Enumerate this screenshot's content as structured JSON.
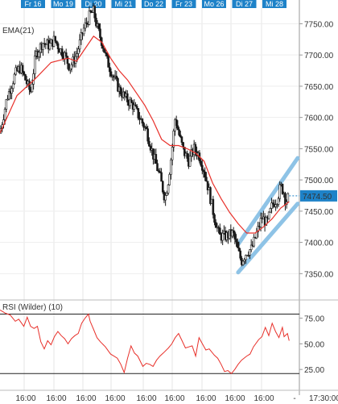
{
  "chart_data": [
    {
      "type": "candlestick",
      "indicator_label": "EMA(21)",
      "top_day_labels": [
        "Fr 16",
        "Mo 19",
        "Di 20",
        "Mi 21",
        "Do 22",
        "Fr 23",
        "Mo 26",
        "Di 27",
        "Mi 28"
      ],
      "x_tick_labels": [
        "16:00",
        "16:00",
        "16:00",
        "16:00",
        "16:00",
        "16:00",
        "16:00",
        "16:00",
        "16:00",
        "-",
        "17:30:00"
      ],
      "y_ticks": [
        7750,
        7700,
        7650,
        7600,
        7550,
        7500,
        7450,
        7400,
        7350
      ],
      "y_tick_labels": [
        "7750.00",
        "7700.00",
        "7650.00",
        "7600.00",
        "7550.00",
        "7500.00",
        "7450.00",
        "7400.00",
        "7350.00"
      ],
      "ylim": [
        7313,
        7788
      ],
      "last_price": 7474.5,
      "last_price_label": "7474.50",
      "close_path": [
        [
          0,
          7575
        ],
        [
          4,
          7630
        ],
        [
          9,
          7670
        ],
        [
          12,
          7680
        ],
        [
          15,
          7660
        ],
        [
          18,
          7640
        ],
        [
          21,
          7700
        ],
        [
          25,
          7720
        ],
        [
          29,
          7715
        ],
        [
          32,
          7725
        ],
        [
          35,
          7710
        ],
        [
          38,
          7700
        ],
        [
          41,
          7680
        ],
        [
          45,
          7700
        ],
        [
          49,
          7740
        ],
        [
          53,
          7765
        ],
        [
          55,
          7770
        ],
        [
          57,
          7745
        ],
        [
          60,
          7720
        ],
        [
          63,
          7690
        ],
        [
          66,
          7670
        ],
        [
          70,
          7645
        ],
        [
          74,
          7630
        ],
        [
          78,
          7620
        ],
        [
          82,
          7600
        ],
        [
          86,
          7580
        ],
        [
          90,
          7540
        ],
        [
          94,
          7505
        ],
        [
          97,
          7470
        ],
        [
          99,
          7500
        ],
        [
          101,
          7545
        ],
        [
          103,
          7600
        ],
        [
          105,
          7575
        ],
        [
          108,
          7545
        ],
        [
          111,
          7530
        ],
        [
          114,
          7550
        ],
        [
          117,
          7540
        ],
        [
          120,
          7515
        ],
        [
          123,
          7480
        ],
        [
          126,
          7440
        ],
        [
          129,
          7410
        ],
        [
          133,
          7410
        ],
        [
          137,
          7415
        ],
        [
          140,
          7385
        ],
        [
          142,
          7370
        ],
        [
          145,
          7385
        ],
        [
          148,
          7390
        ],
        [
          151,
          7415
        ],
        [
          154,
          7440
        ],
        [
          157,
          7430
        ],
        [
          160,
          7460
        ],
        [
          163,
          7470
        ],
        [
          165,
          7490
        ],
        [
          167,
          7480
        ],
        [
          168,
          7465
        ],
        [
          170,
          7474.5
        ]
      ],
      "ema_path": [
        [
          0,
          7575
        ],
        [
          10,
          7635
        ],
        [
          20,
          7660
        ],
        [
          30,
          7688
        ],
        [
          40,
          7695
        ],
        [
          45,
          7690
        ],
        [
          50,
          7710
        ],
        [
          55,
          7730
        ],
        [
          60,
          7720
        ],
        [
          65,
          7695
        ],
        [
          70,
          7675
        ],
        [
          75,
          7660
        ],
        [
          80,
          7640
        ],
        [
          85,
          7620
        ],
        [
          90,
          7595
        ],
        [
          95,
          7565
        ],
        [
          100,
          7555
        ],
        [
          105,
          7555
        ],
        [
          110,
          7550
        ],
        [
          115,
          7543
        ],
        [
          120,
          7530
        ],
        [
          125,
          7495
        ],
        [
          130,
          7470
        ],
        [
          135,
          7448
        ],
        [
          140,
          7430
        ],
        [
          145,
          7415
        ],
        [
          150,
          7415
        ],
        [
          155,
          7425
        ],
        [
          160,
          7438
        ],
        [
          165,
          7455
        ],
        [
          170,
          7465
        ]
      ],
      "channel_lines": [
        [
          [
            140,
            7397
          ],
          [
            175,
            7535
          ]
        ],
        [
          [
            140,
            7352
          ],
          [
            175,
            7462
          ]
        ]
      ],
      "colors": {
        "candles": "#1a1a1a",
        "ema": "#e8302a",
        "channel": "#8ec3e6",
        "label_bg": "#1e82c8",
        "last_price_box": "#1e82c8"
      }
    },
    {
      "type": "line",
      "indicator_label": "RSI (Wilder) (10)",
      "y_ticks": [
        75,
        50,
        25
      ],
      "y_tick_labels": [
        "75.00",
        "50.00",
        "25.00"
      ],
      "ylim": [
        11,
        88
      ],
      "reference_lines": [
        79,
        21
      ],
      "values": [
        [
          0,
          83
        ],
        [
          3,
          80
        ],
        [
          6,
          78
        ],
        [
          9,
          72
        ],
        [
          11,
          74
        ],
        [
          14,
          67
        ],
        [
          16,
          76
        ],
        [
          18,
          67
        ],
        [
          20,
          65
        ],
        [
          22,
          67
        ],
        [
          24,
          52
        ],
        [
          26,
          45
        ],
        [
          28,
          53
        ],
        [
          30,
          49
        ],
        [
          32,
          57
        ],
        [
          34,
          62
        ],
        [
          36,
          58
        ],
        [
          38,
          55
        ],
        [
          40,
          50
        ],
        [
          42,
          55
        ],
        [
          44,
          58
        ],
        [
          46,
          60
        ],
        [
          48,
          70
        ],
        [
          50,
          75
        ],
        [
          52,
          79
        ],
        [
          53,
          72
        ],
        [
          55,
          64
        ],
        [
          57,
          56
        ],
        [
          59,
          52
        ],
        [
          62,
          47
        ],
        [
          65,
          40
        ],
        [
          67,
          38
        ],
        [
          69,
          36
        ],
        [
          71,
          30
        ],
        [
          73,
          22
        ],
        [
          75,
          36
        ],
        [
          77,
          48
        ],
        [
          79,
          41
        ],
        [
          81,
          38
        ],
        [
          84,
          28
        ],
        [
          86,
          31
        ],
        [
          88,
          30
        ],
        [
          90,
          28
        ],
        [
          92,
          34
        ],
        [
          94,
          38
        ],
        [
          96,
          41
        ],
        [
          99,
          46
        ],
        [
          101,
          50
        ],
        [
          103,
          56
        ],
        [
          105,
          60
        ],
        [
          107,
          53
        ],
        [
          109,
          46
        ],
        [
          111,
          47
        ],
        [
          113,
          48
        ],
        [
          115,
          38
        ],
        [
          117,
          56
        ],
        [
          119,
          50
        ],
        [
          121,
          44
        ],
        [
          123,
          45
        ],
        [
          126,
          39
        ],
        [
          128,
          36
        ],
        [
          130,
          30
        ],
        [
          132,
          23
        ],
        [
          134,
          24
        ],
        [
          136,
          21
        ],
        [
          138,
          25
        ],
        [
          140,
          30
        ],
        [
          142,
          34
        ],
        [
          145,
          38
        ],
        [
          147,
          40
        ],
        [
          149,
          47
        ],
        [
          152,
          54
        ],
        [
          154,
          57
        ],
        [
          156,
          66
        ],
        [
          158,
          58
        ],
        [
          160,
          70
        ],
        [
          162,
          62
        ],
        [
          164,
          56
        ],
        [
          166,
          66
        ],
        [
          167,
          57
        ],
        [
          169,
          60
        ],
        [
          170,
          53
        ]
      ],
      "color": "#e8302a"
    }
  ]
}
